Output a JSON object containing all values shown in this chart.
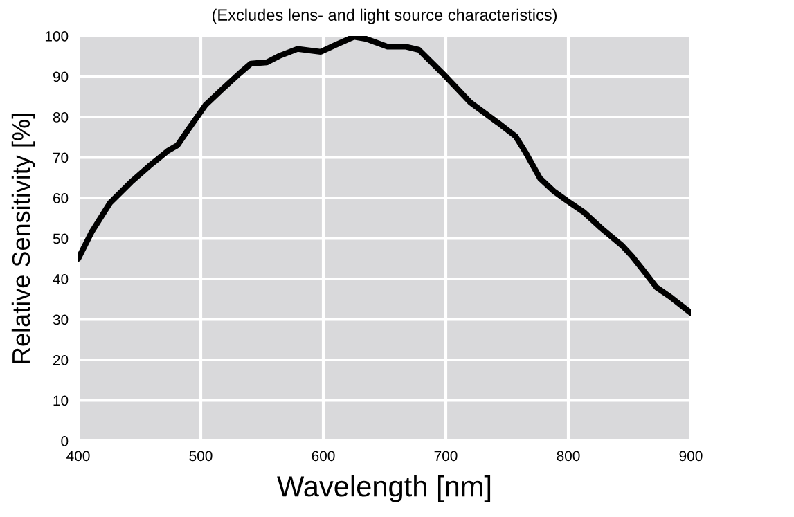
{
  "chart_data": {
    "type": "line",
    "title": "(Excludes lens- and light source characteristics)",
    "xlabel": "Wavelength [nm]",
    "ylabel": "Relative Sensitivity [%]",
    "xlim": [
      400,
      900
    ],
    "xticks": [
      400,
      500,
      600,
      700,
      800,
      900
    ],
    "ylim": [
      0,
      100
    ],
    "yticks": [
      0,
      10,
      20,
      30,
      40,
      50,
      60,
      70,
      80,
      90,
      100
    ],
    "grid": true,
    "marker": "none",
    "line_style": "solid",
    "series": [
      {
        "color": "#000000",
        "x": [
          400,
          411,
          426,
          443,
          458,
          465,
          473,
          481,
          490,
          504,
          517,
          531,
          541,
          554,
          565,
          579,
          590,
          598,
          610,
          625,
          635,
          652,
          667,
          678,
          698,
          720,
          743,
          757,
          765,
          777,
          788,
          799,
          813,
          827,
          844,
          852,
          861,
          872,
          884,
          900
        ],
        "values": [
          45,
          51.6,
          58.8,
          63.9,
          67.9,
          69.6,
          71.6,
          73,
          77,
          83,
          86.7,
          90.6,
          93.2,
          93.5,
          95.2,
          96.8,
          96.4,
          96.1,
          97.8,
          99.8,
          99.3,
          97.4,
          97.4,
          96.6,
          90.6,
          83.6,
          78.5,
          75.2,
          71.3,
          64.8,
          61.7,
          59.3,
          56.4,
          52.5,
          48.2,
          45.6,
          42.2,
          37.9,
          35.4,
          31.6
        ]
      }
    ]
  }
}
